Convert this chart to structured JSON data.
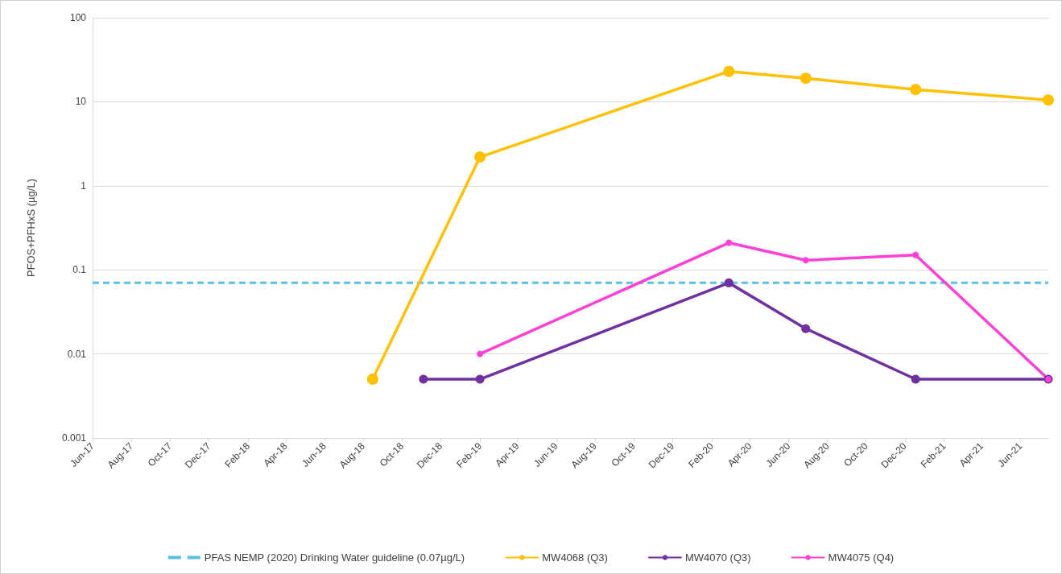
{
  "chart_data": {
    "type": "line",
    "ylabel": "PFOS+PFHxS (µg/L)",
    "log": "y",
    "grid": "y",
    "legend": "bottom",
    "marker": "circle",
    "line_style": "solid",
    "xlim": [
      "2017-06-01",
      "2021-07-15"
    ],
    "xticks": [
      {
        "value": "2017-06-01",
        "label": "Jun-17"
      },
      {
        "value": "2017-08-01",
        "label": "Aug-17"
      },
      {
        "value": "2017-10-01",
        "label": "Oct-17"
      },
      {
        "value": "2017-12-01",
        "label": "Dec-17"
      },
      {
        "value": "2018-02-01",
        "label": "Feb-18"
      },
      {
        "value": "2018-04-01",
        "label": "Apr-18"
      },
      {
        "value": "2018-06-01",
        "label": "Jun-18"
      },
      {
        "value": "2018-08-01",
        "label": "Aug-18"
      },
      {
        "value": "2018-10-01",
        "label": "Oct-18"
      },
      {
        "value": "2018-12-01",
        "label": "Dec-18"
      },
      {
        "value": "2019-02-01",
        "label": "Feb-19"
      },
      {
        "value": "2019-04-01",
        "label": "Apr-19"
      },
      {
        "value": "2019-06-01",
        "label": "Jun-19"
      },
      {
        "value": "2019-08-01",
        "label": "Aug-19"
      },
      {
        "value": "2019-10-01",
        "label": "Oct-19"
      },
      {
        "value": "2019-12-01",
        "label": "Dec-19"
      },
      {
        "value": "2020-02-01",
        "label": "Feb-20"
      },
      {
        "value": "2020-04-01",
        "label": "Apr-20"
      },
      {
        "value": "2020-06-01",
        "label": "Jun-20"
      },
      {
        "value": "2020-08-01",
        "label": "Aug-20"
      },
      {
        "value": "2020-10-01",
        "label": "Oct-20"
      },
      {
        "value": "2020-12-01",
        "label": "Dec-20"
      },
      {
        "value": "2021-02-01",
        "label": "Feb-21"
      },
      {
        "value": "2021-04-01",
        "label": "Apr-21"
      },
      {
        "value": "2021-06-01",
        "label": "Jun-21"
      }
    ],
    "ylim": [
      0.001,
      100
    ],
    "yticks": [
      0.001,
      0.01,
      0.1,
      1,
      10,
      100
    ],
    "ref_lines": [
      {
        "axis": "y",
        "value": 0.07,
        "label": "PFAS NEMP (2020) Drinking Water guideline (0.07µg/L)",
        "color": "#5bc0e6",
        "line_style": "dashed"
      }
    ],
    "series": [
      {
        "name": "MW4068 (Q3)",
        "color": "#ffc000",
        "x": [
          "2018-08-16",
          "2019-02-01",
          "2020-02-28",
          "2020-06-28",
          "2020-12-18",
          "2021-07-15"
        ],
        "values": [
          0.005,
          2.2,
          23,
          19,
          14,
          10.5
        ]
      },
      {
        "name": "MW4070 (Q3)",
        "color": "#7030a0",
        "x": [
          "2018-11-04",
          "2019-02-01",
          "2020-02-28",
          "2020-06-28",
          "2020-12-18",
          "2021-07-15"
        ],
        "values": [
          0.005,
          0.005,
          0.07,
          0.02,
          0.005,
          0.005
        ]
      },
      {
        "name": "MW4075 (Q4)",
        "color": "#ff40d6",
        "x": [
          "2019-02-01",
          "2020-02-28",
          "2020-06-28",
          "2020-12-18",
          "2021-07-15"
        ],
        "values": [
          0.01,
          0.21,
          0.13,
          0.15,
          0.005
        ]
      }
    ]
  }
}
